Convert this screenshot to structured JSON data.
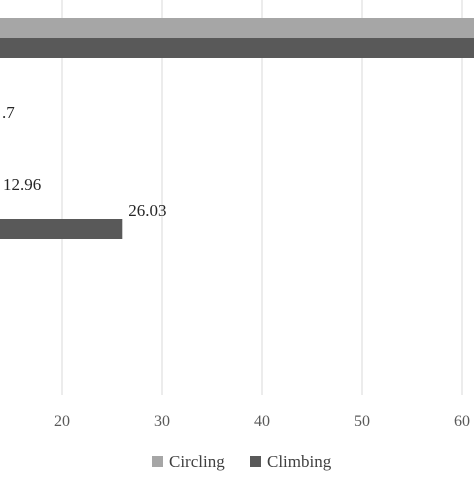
{
  "chart_data": {
    "type": "bar",
    "orientation": "horizontal",
    "title": "",
    "xlabel": "",
    "ylabel": "",
    "xlim": [
      0,
      62
    ],
    "x_ticks": [
      20,
      30,
      40,
      50,
      60
    ],
    "x_tick_labels": [
      "20",
      "30",
      "40",
      "50",
      "60"
    ],
    "grid": true,
    "legend_position": "bottom",
    "series": [
      {
        "name": "Circling",
        "color": "#a6a6a6",
        "values": [
          62,
          null,
          12.96
        ],
        "labels": [
          "",
          ".7",
          "12.96"
        ]
      },
      {
        "name": "Climbing",
        "color": "#595959",
        "values": [
          62,
          null,
          26.03
        ],
        "labels": [
          "",
          "",
          "26.03"
        ]
      }
    ]
  }
}
